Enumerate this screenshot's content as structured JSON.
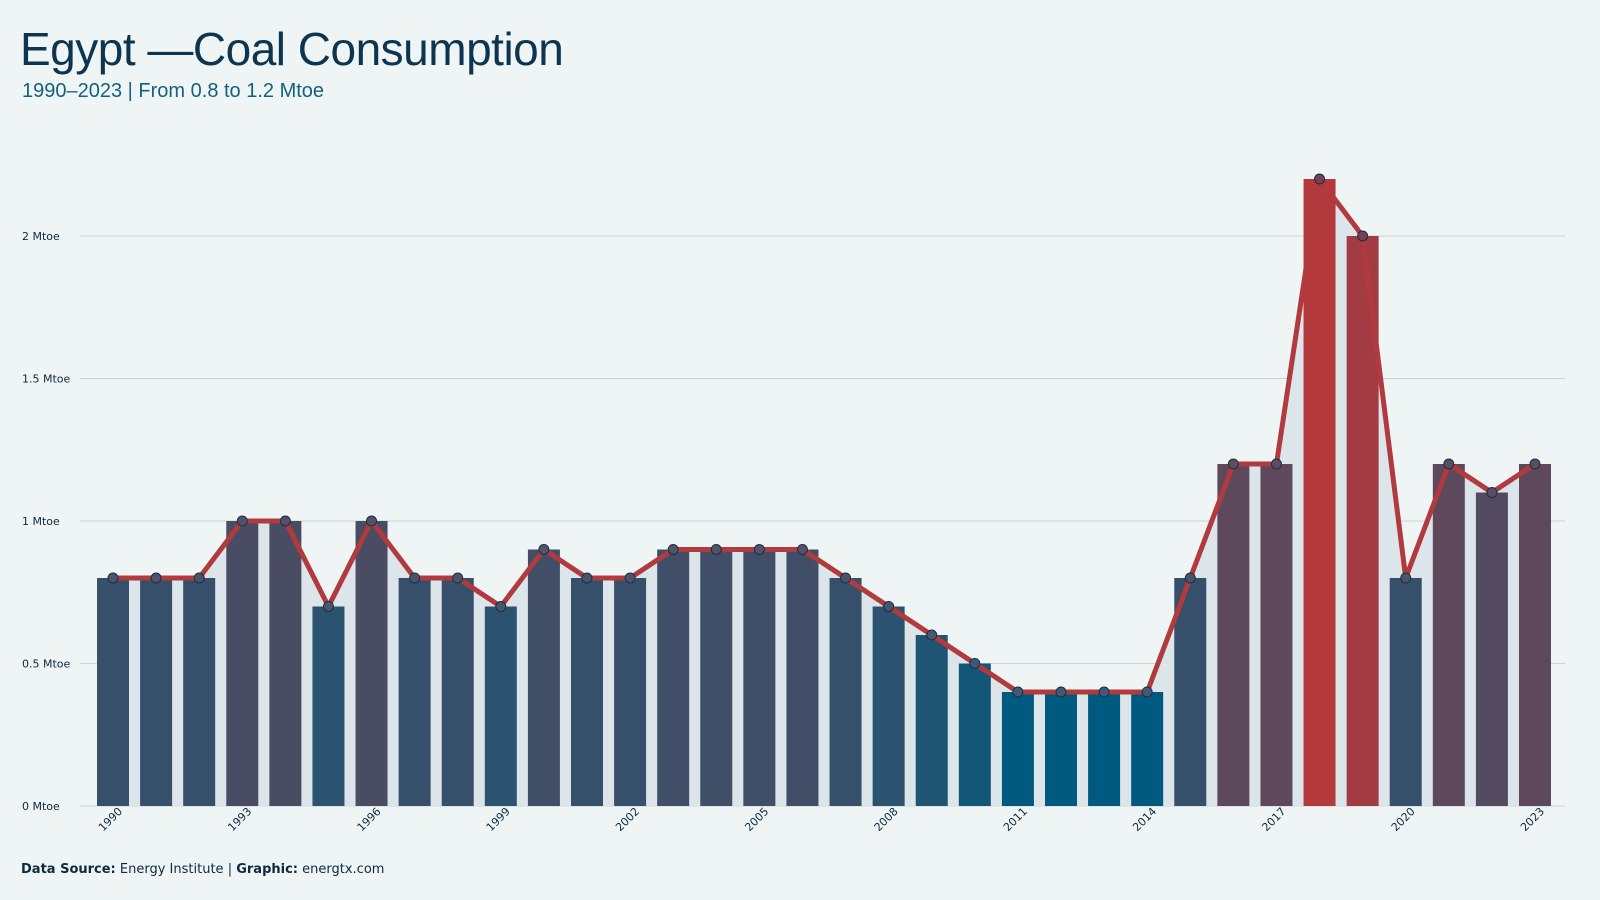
{
  "header": {
    "title": "Egypt —Coal Consumption",
    "subtitle": "1990–2023 | From 0.8 to 1.2 Mtoe"
  },
  "footer": {
    "source_label": "Data Source:",
    "source_value": "Energy Institute",
    "separator": "|",
    "graphic_label": "Graphic:",
    "graphic_value": "energtx.com"
  },
  "colors": {
    "background": "#eff5f5",
    "line": "#b03a3d",
    "bar_low": "#005a7f",
    "bar_high": "#b3393c",
    "area_fill": "#dce5ea",
    "grid": "#c9d3d6"
  },
  "chart_data": {
    "type": "bar",
    "title": "Egypt —Coal Consumption",
    "subtitle": "1990–2023 | From 0.8 to 1.2 Mtoe",
    "xlabel": "",
    "ylabel": "",
    "unit": "Mtoe",
    "ylim": [
      0,
      2.25
    ],
    "yticks": [
      0,
      0.5,
      1,
      1.5,
      2
    ],
    "ytick_labels": [
      "0 Mtoe",
      "0.5 Mtoe",
      "1 Mtoe",
      "1.5 Mtoe",
      "2 Mtoe"
    ],
    "xtick_labels": [
      "1990",
      "1993",
      "1996",
      "1999",
      "2002",
      "2005",
      "2008",
      "2011",
      "2014",
      "2017",
      "2020",
      "2023"
    ],
    "grid": true,
    "overlay": "line-with-markers-and-area",
    "categories": [
      "1990",
      "1991",
      "1992",
      "1993",
      "1994",
      "1995",
      "1996",
      "1997",
      "1998",
      "1999",
      "2000",
      "2001",
      "2002",
      "2003",
      "2004",
      "2005",
      "2006",
      "2007",
      "2008",
      "2009",
      "2010",
      "2011",
      "2012",
      "2013",
      "2014",
      "2015",
      "2016",
      "2017",
      "2018",
      "2019",
      "2020",
      "2021",
      "2022",
      "2023"
    ],
    "values": [
      0.8,
      0.8,
      0.8,
      1.0,
      1.0,
      0.7,
      1.0,
      0.8,
      0.8,
      0.7,
      0.9,
      0.8,
      0.8,
      0.9,
      0.9,
      0.9,
      0.9,
      0.8,
      0.7,
      0.6,
      0.5,
      0.4,
      0.4,
      0.4,
      0.4,
      0.8,
      1.2,
      1.2,
      2.2,
      2.0,
      0.8,
      1.2,
      1.1,
      1.2
    ]
  }
}
